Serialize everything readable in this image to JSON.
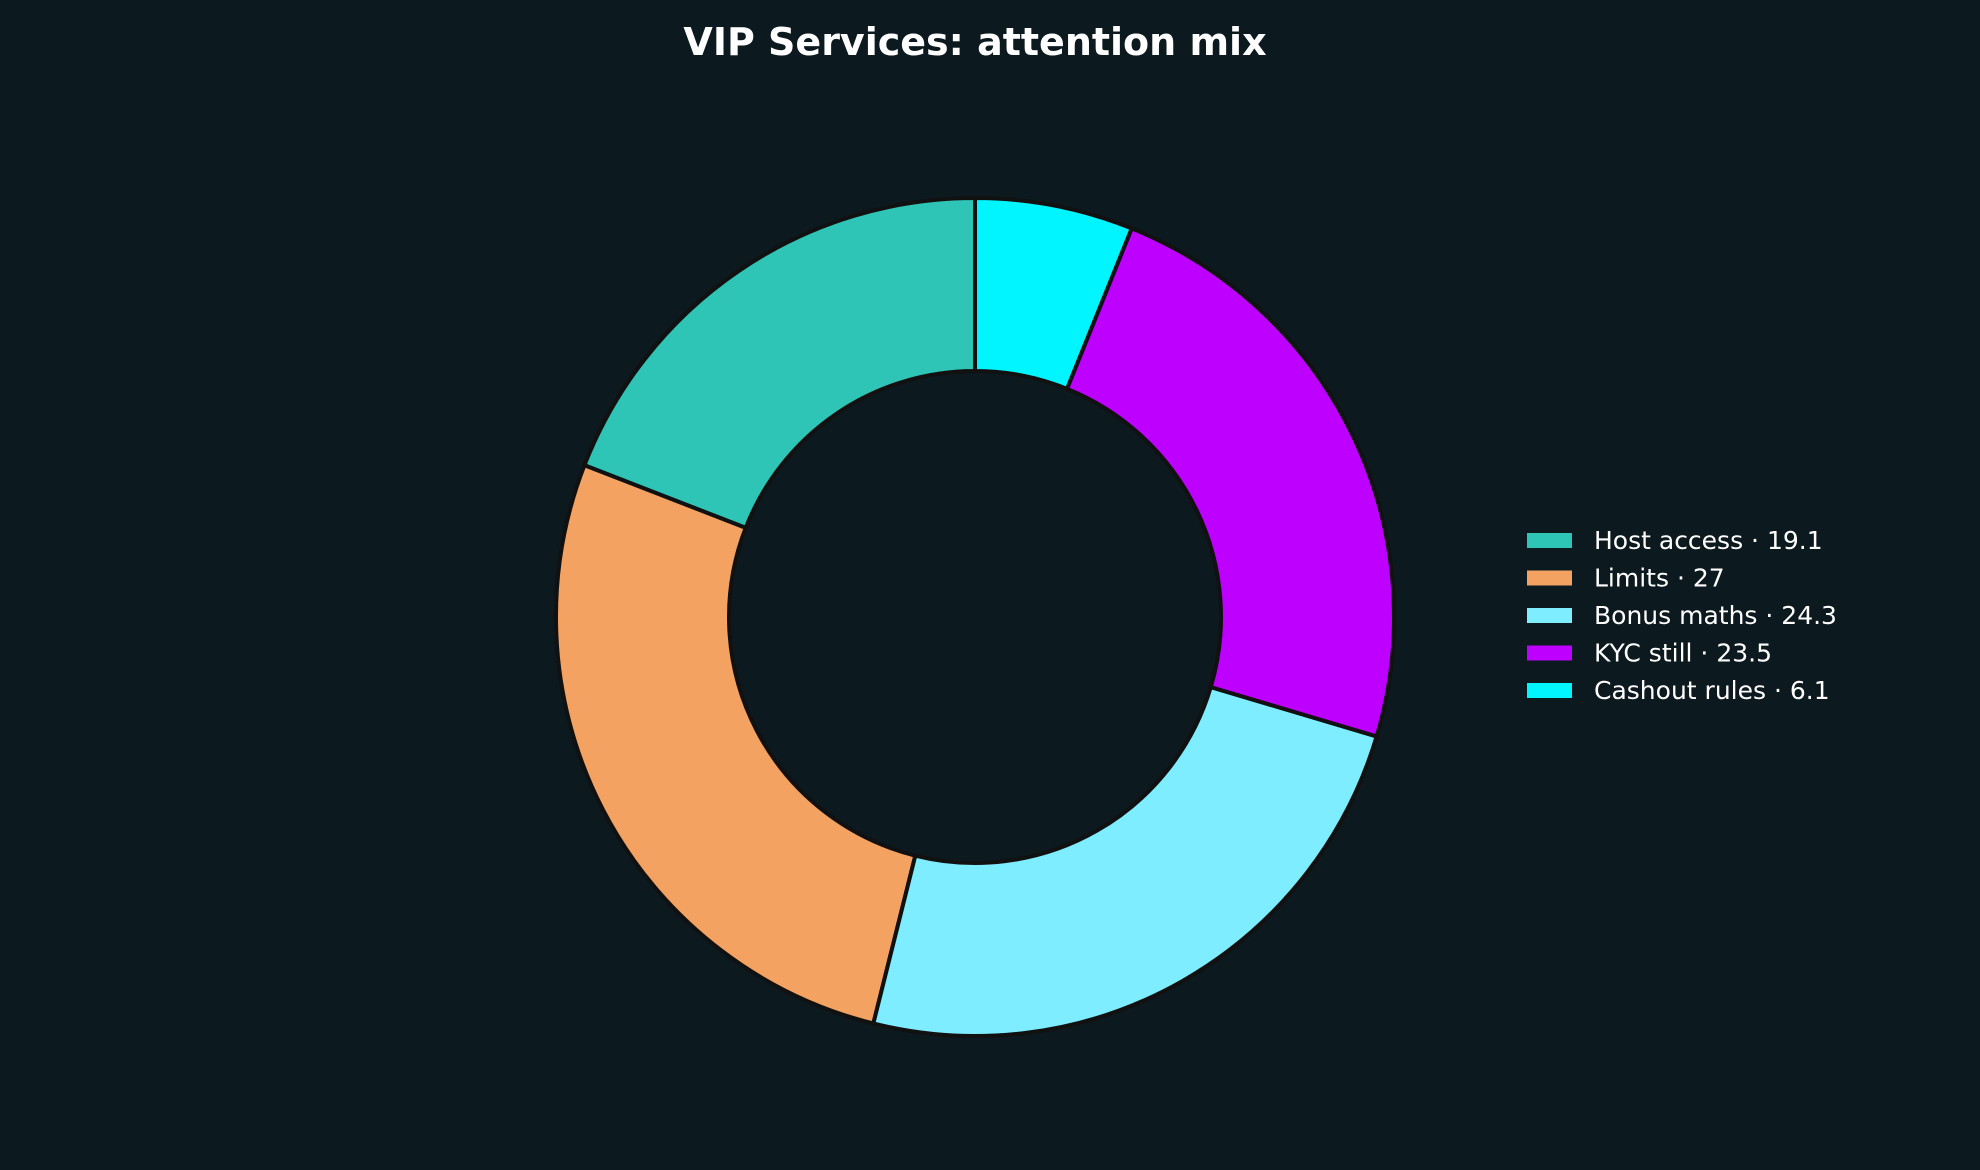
{
  "chart_data": {
    "type": "pie",
    "donut": true,
    "title": "VIP Services: attention mix",
    "categories": [
      "Host access",
      "Limits",
      "Bonus maths",
      "KYC still",
      "Cashout rules"
    ],
    "values": [
      19.1,
      27,
      24.3,
      23.5,
      6.1
    ],
    "legend_labels": [
      "Host access · 19.1",
      "Limits · 27",
      "Bonus maths · 24.3",
      "KYC still · 23.5",
      "Cashout rules · 6.1"
    ],
    "colors": [
      "#2ec4b6",
      "#f4a261",
      "#7eedff",
      "#bd00ff",
      "#00f5ff"
    ],
    "start_angle_deg": 90,
    "direction": "counterclockwise",
    "legend_position": "right"
  },
  "theme": {
    "background": "#0c191e",
    "edge_color": "#111111",
    "text_color": "#ffffff"
  }
}
